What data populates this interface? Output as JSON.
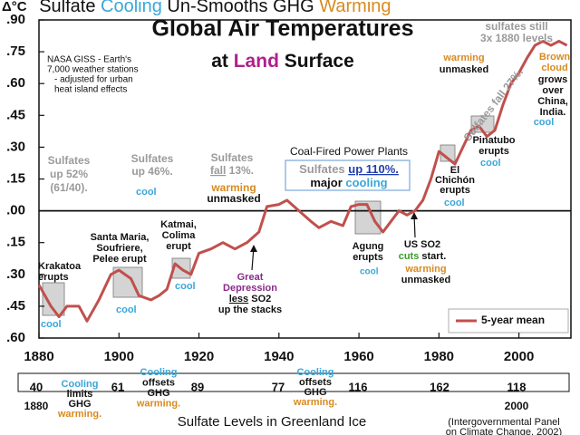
{
  "chart_data": {
    "type": "line",
    "title": [
      "Δ°C",
      "Sulfate ",
      "Cooling",
      " Un-Smooths GHG ",
      "Warming"
    ],
    "chart_title": "Global Air Temperatures",
    "subtitle": [
      "at ",
      "Land",
      " Surface"
    ],
    "source_note": [
      "NASA GISS - Earth's",
      "7,000 weather stations",
      "- adjusted for urban",
      "heat island effects"
    ],
    "x": [
      1880,
      1883,
      1885,
      1887,
      1890,
      1892,
      1895,
      1898,
      1900,
      1903,
      1905,
      1908,
      1910,
      1912,
      1914,
      1916,
      1918,
      1920,
      1923,
      1926,
      1929,
      1932,
      1935,
      1937,
      1940,
      1942,
      1945,
      1948,
      1950,
      1953,
      1956,
      1958,
      1960,
      1962,
      1964,
      1966,
      1968,
      1970,
      1972,
      1974,
      1976,
      1978,
      1980,
      1982,
      1984,
      1986,
      1988,
      1990,
      1992,
      1994,
      1996,
      1998,
      2000,
      2002,
      2004,
      2006,
      2008,
      2010,
      2012
    ],
    "series": [
      {
        "name": "5-year mean",
        "color": "#c0504d",
        "values": [
          -0.35,
          -0.45,
          -0.5,
          -0.45,
          -0.45,
          -0.52,
          -0.42,
          -0.3,
          -0.28,
          -0.32,
          -0.4,
          -0.42,
          -0.4,
          -0.37,
          -0.25,
          -0.28,
          -0.3,
          -0.2,
          -0.18,
          -0.15,
          -0.18,
          -0.15,
          -0.1,
          0.02,
          0.03,
          0.05,
          0.0,
          -0.05,
          -0.08,
          -0.05,
          -0.07,
          0.02,
          0.03,
          0.03,
          -0.05,
          -0.1,
          -0.05,
          0.0,
          -0.02,
          0.0,
          0.05,
          0.15,
          0.28,
          0.25,
          0.22,
          0.3,
          0.38,
          0.4,
          0.35,
          0.38,
          0.5,
          0.6,
          0.65,
          0.72,
          0.78,
          0.8,
          0.78,
          0.8,
          0.78
        ]
      }
    ],
    "xlim": [
      1880,
      2013
    ],
    "xticks": [
      1880,
      1900,
      1920,
      1940,
      1960,
      1980,
      2000
    ],
    "ylim": [
      -0.6,
      0.9
    ],
    "yticks": [
      {
        "value": -0.6,
        "label": ".60"
      },
      {
        "value": -0.45,
        "label": ".45"
      },
      {
        "value": -0.3,
        "label": ".30"
      },
      {
        "value": -0.15,
        "label": ".15"
      },
      {
        "value": 0,
        "label": ".00"
      },
      {
        "value": 0.15,
        "label": ".15"
      },
      {
        "value": 0.3,
        "label": ".30"
      },
      {
        "value": 0.45,
        "label": ".45"
      },
      {
        "value": 0.6,
        "label": ".60"
      },
      {
        "value": 0.75,
        "label": ".75"
      },
      {
        "value": 0.9,
        "label": ".90"
      }
    ],
    "grid": false,
    "legend": "lower right",
    "annotations": [
      [
        "Krakatoa",
        "erupts"
      ],
      [
        "cool"
      ],
      [
        "Santa Maria,",
        "Soufriere,",
        "Pelee erupt"
      ],
      [
        "cool"
      ],
      [
        "Katmai,",
        "Colima",
        "erupt"
      ],
      [
        "cool"
      ],
      [
        "Great",
        "Depression",
        [
          "less",
          " SO2"
        ],
        "up the stacks"
      ],
      [
        "Sulfates",
        "up 52%",
        "(61/40)."
      ],
      [
        "cool"
      ],
      [
        "Sulfates",
        "up 46%."
      ],
      [
        "Sulfates",
        [
          "fall",
          " 13%."
        ]
      ],
      [
        "warming"
      ],
      [
        "unmasked"
      ],
      [
        "Coal-Fired Power Plants"
      ],
      [
        [
          "Sulfates ",
          "up 110%."
        ],
        [
          "major ",
          "cooling"
        ]
      ],
      [
        "Agung",
        "erupts"
      ],
      [
        "cool"
      ],
      [
        "US SO2"
      ],
      [
        [
          "cuts",
          " start."
        ]
      ],
      [
        "warming"
      ],
      [
        "unmasked"
      ],
      [
        "El",
        "Chichón",
        "erupts"
      ],
      [
        "cool"
      ],
      [
        "Pinatubo",
        "erupts"
      ],
      [
        "cool"
      ],
      [
        "Sulfates fall 27%."
      ],
      [
        "warming"
      ],
      [
        "unmasked"
      ],
      [
        "sulfates still",
        "3x 1880 levels"
      ],
      [
        "Brown",
        "cloud"
      ],
      [
        "grows",
        "over",
        "China,",
        "India."
      ],
      [
        "cool"
      ]
    ],
    "sulfate_table": {
      "values": [
        "40",
        "61",
        "89",
        "77",
        "116",
        "162",
        "118"
      ],
      "years": [
        "1880",
        "2000"
      ],
      "notes": [
        [
          "Cooling",
          "limits",
          "GHG",
          "warming."
        ],
        [
          "Cooling",
          "offsets",
          "GHG",
          "warming."
        ],
        [
          "Cooling",
          "offsets",
          "GHG",
          "warming."
        ]
      ],
      "title": "Sulfate Levels in Greenland Ice",
      "source": [
        "(Intergovernmental Panel",
        "on Climate Change, 2002)"
      ]
    }
  }
}
